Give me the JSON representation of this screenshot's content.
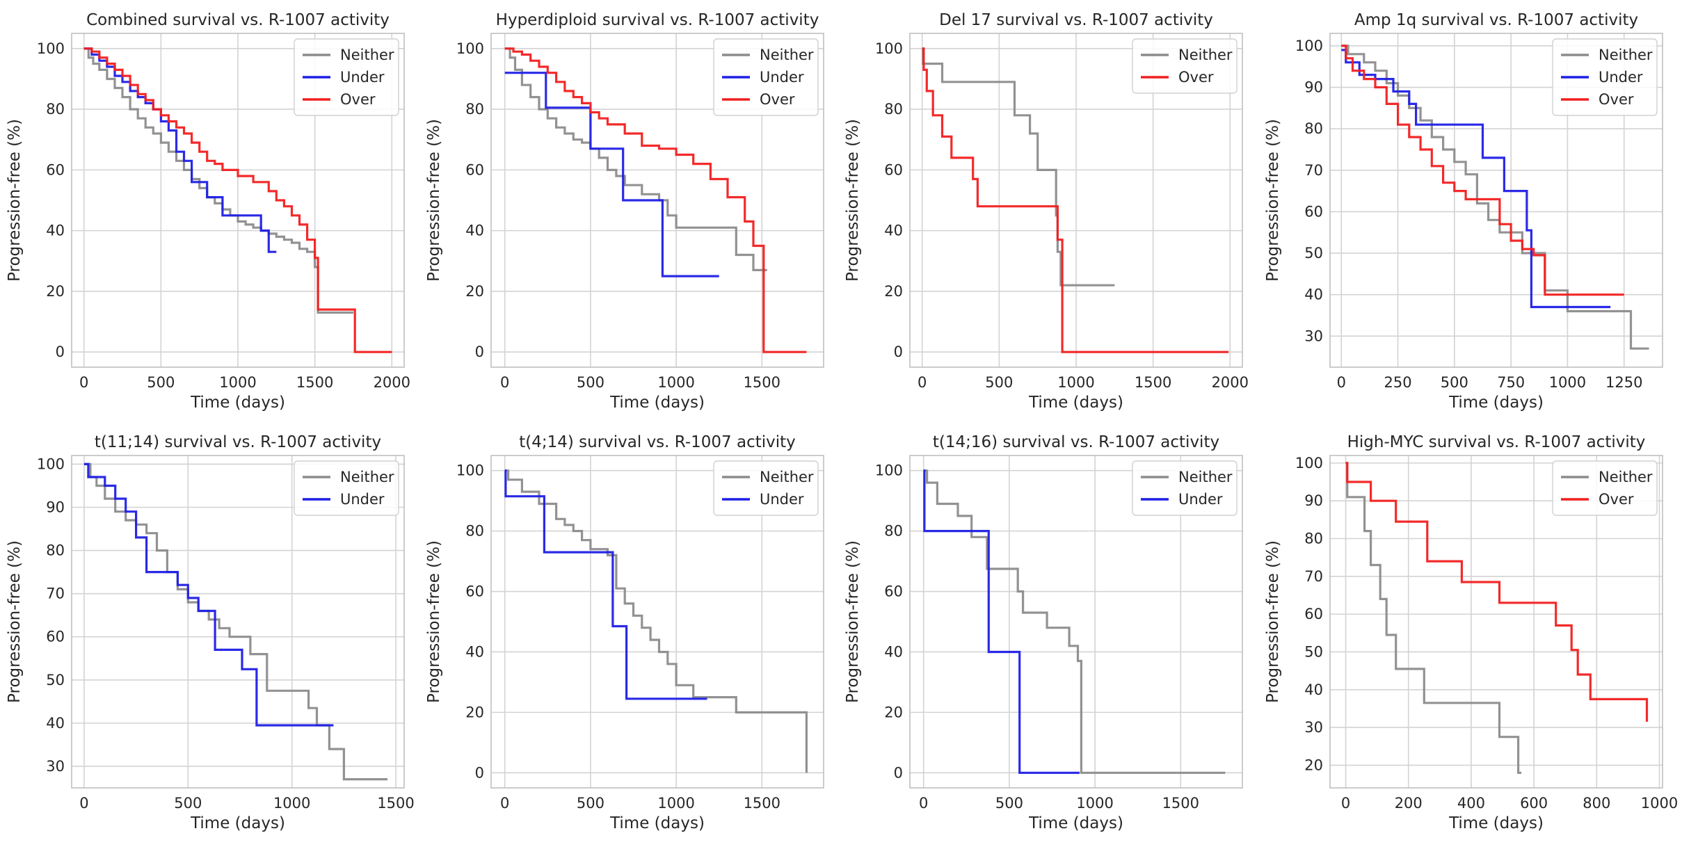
{
  "colors": {
    "Neither": "#8c8c8c",
    "Under": "#1f1fe6",
    "Over": "#f21f1f",
    "grid": "#d3d3d3",
    "axes": "#bfbfbf"
  },
  "chart_data": [
    {
      "type": "line",
      "title": "Combined survival vs. R-1007 activity",
      "xlabel": "Time (days)",
      "ylabel": "Progression-free (%)",
      "xlim": [
        -80,
        2080
      ],
      "ylim": [
        -5,
        105
      ],
      "xticks": [
        0,
        500,
        1000,
        1500,
        2000
      ],
      "yticks": [
        0,
        20,
        40,
        60,
        80,
        100
      ],
      "grid": true,
      "legend": "top-right",
      "legend_entries": [
        "Neither",
        "Under",
        "Over"
      ],
      "series": [
        {
          "name": "Neither",
          "x": [
            0,
            30,
            60,
            100,
            150,
            200,
            250,
            300,
            350,
            400,
            450,
            500,
            550,
            600,
            650,
            700,
            750,
            800,
            850,
            900,
            950,
            1000,
            1050,
            1100,
            1150,
            1200,
            1250,
            1300,
            1350,
            1400,
            1450,
            1500,
            1520,
            1750
          ],
          "y": [
            100,
            97,
            95,
            93,
            90,
            87,
            84,
            80,
            77,
            74,
            72,
            69,
            66,
            63,
            60,
            57,
            54,
            51,
            49,
            47,
            45,
            43,
            42,
            41,
            40,
            39,
            38,
            37,
            36,
            34,
            33,
            28,
            13,
            13
          ]
        },
        {
          "name": "Under",
          "x": [
            0,
            50,
            100,
            150,
            200,
            250,
            300,
            350,
            400,
            450,
            500,
            550,
            600,
            650,
            700,
            800,
            900,
            950,
            1000,
            1150,
            1200,
            1250
          ],
          "y": [
            100,
            98,
            96,
            94,
            91,
            89,
            86,
            84,
            82,
            80,
            76,
            73,
            66,
            63,
            56,
            51,
            45,
            45,
            45,
            40,
            33,
            33
          ]
        },
        {
          "name": "Over",
          "x": [
            0,
            50,
            100,
            150,
            200,
            250,
            300,
            350,
            400,
            450,
            500,
            550,
            600,
            650,
            700,
            750,
            800,
            850,
            900,
            1000,
            1100,
            1200,
            1250,
            1300,
            1350,
            1400,
            1450,
            1500,
            1520,
            1760,
            2000
          ],
          "y": [
            100,
            99,
            97,
            95,
            93,
            91,
            88,
            85,
            83,
            80,
            78,
            76,
            74,
            72,
            69,
            66,
            63,
            62,
            60,
            58,
            56,
            53,
            50,
            48,
            45,
            42,
            37,
            31,
            14,
            0,
            0
          ]
        }
      ]
    },
    {
      "type": "line",
      "title": "Hyperdiploid survival vs. R-1007 activity",
      "xlabel": "Time (days)",
      "ylabel": "Progression-free (%)",
      "xlim": [
        -80,
        1860
      ],
      "ylim": [
        -5,
        105
      ],
      "xticks": [
        0,
        500,
        1000,
        1500
      ],
      "yticks": [
        0,
        20,
        40,
        60,
        80,
        100
      ],
      "grid": true,
      "legend": "top-right",
      "legend_entries": [
        "Neither",
        "Under",
        "Over"
      ],
      "series": [
        {
          "name": "Neither",
          "x": [
            0,
            30,
            60,
            100,
            150,
            200,
            250,
            300,
            350,
            400,
            450,
            500,
            550,
            600,
            650,
            700,
            800,
            900,
            950,
            1000,
            1100,
            1350,
            1450,
            1530
          ],
          "y": [
            100,
            97,
            93,
            88,
            84,
            80,
            77,
            74,
            72,
            70,
            69,
            67,
            64,
            60,
            58,
            55,
            52,
            50,
            45,
            41,
            41,
            32,
            27,
            27
          ]
        },
        {
          "name": "Under",
          "x": [
            0,
            240,
            500,
            690,
            920,
            1250
          ],
          "y": [
            92,
            80.5,
            67,
            50,
            25,
            25
          ]
        },
        {
          "name": "Over",
          "x": [
            0,
            50,
            100,
            150,
            200,
            250,
            300,
            350,
            400,
            450,
            500,
            550,
            600,
            700,
            800,
            900,
            1000,
            1100,
            1200,
            1300,
            1400,
            1450,
            1510,
            1760
          ],
          "y": [
            100,
            99,
            98,
            96,
            94,
            92,
            89,
            86,
            84,
            82,
            79,
            77,
            75,
            72,
            68,
            67,
            65,
            62,
            57,
            51,
            43,
            35,
            0,
            0
          ]
        }
      ]
    },
    {
      "type": "line",
      "title": "Del 17 survival vs. R-1007 activity",
      "xlabel": "Time (days)",
      "ylabel": "Progression-free (%)",
      "xlim": [
        -80,
        2080
      ],
      "ylim": [
        -5,
        105
      ],
      "xticks": [
        0,
        500,
        1000,
        1500,
        2000
      ],
      "yticks": [
        0,
        20,
        40,
        60,
        80,
        100
      ],
      "grid": true,
      "legend": "top-right",
      "legend_entries": [
        "Neither",
        "Over"
      ],
      "series": [
        {
          "name": "Neither",
          "x": [
            0,
            5,
            130,
            530,
            600,
            700,
            750,
            870,
            880,
            900,
            1250
          ],
          "y": [
            100,
            95,
            89,
            89,
            78,
            72,
            60,
            45,
            33,
            22,
            22
          ]
        },
        {
          "name": "Over",
          "x": [
            0,
            10,
            30,
            70,
            130,
            190,
            330,
            360,
            880,
            910,
            1990
          ],
          "y": [
            100,
            93,
            86,
            78,
            71,
            64,
            57,
            48,
            37,
            0,
            0
          ]
        }
      ]
    },
    {
      "type": "line",
      "title": "Amp 1q survival vs. R-1007 activity",
      "xlabel": "Time (days)",
      "ylabel": "Progression-free (%)",
      "xlim": [
        -50,
        1420
      ],
      "ylim": [
        22.5,
        103
      ],
      "xticks": [
        0,
        250,
        500,
        750,
        1000,
        1250
      ],
      "yticks": [
        30,
        40,
        50,
        60,
        70,
        80,
        90,
        100
      ],
      "grid": true,
      "legend": "top-right",
      "legend_entries": [
        "Neither",
        "Under",
        "Over"
      ],
      "series": [
        {
          "name": "Neither",
          "x": [
            0,
            30,
            100,
            150,
            200,
            250,
            300,
            350,
            400,
            450,
            500,
            550,
            600,
            650,
            700,
            800,
            900,
            1000,
            1100,
            1250,
            1280,
            1360
          ],
          "y": [
            100,
            98,
            96,
            94,
            91,
            88,
            85,
            82,
            78,
            75,
            72,
            69,
            62,
            58,
            55,
            50,
            41,
            36,
            36,
            36,
            27,
            27
          ]
        },
        {
          "name": "Under",
          "x": [
            0,
            20,
            80,
            150,
            230,
            300,
            330,
            620,
            625,
            720,
            820,
            840,
            1190
          ],
          "y": [
            99,
            96,
            93,
            92,
            89,
            86,
            81,
            81,
            73,
            65,
            55.5,
            37,
            37
          ]
        },
        {
          "name": "Over",
          "x": [
            0,
            20,
            50,
            100,
            150,
            200,
            250,
            300,
            350,
            400,
            450,
            500,
            550,
            600,
            650,
            700,
            750,
            800,
            850,
            900,
            1250
          ],
          "y": [
            100,
            97,
            94,
            92,
            90,
            86,
            81,
            78,
            75,
            71,
            67,
            65,
            63,
            63,
            63,
            57,
            53,
            51,
            49.5,
            40,
            40
          ]
        }
      ]
    },
    {
      "type": "line",
      "title": "t(11;14) survival vs. R-1007 activity",
      "xlabel": "Time (days)",
      "ylabel": "Progression-free (%)",
      "xlim": [
        -60,
        1540
      ],
      "ylim": [
        25,
        102
      ],
      "xticks": [
        0,
        500,
        1000,
        1500
      ],
      "yticks": [
        30,
        40,
        50,
        60,
        70,
        80,
        90,
        100
      ],
      "grid": true,
      "legend": "top-right",
      "legend_entries": [
        "Neither",
        "Under"
      ],
      "series": [
        {
          "name": "Neither",
          "x": [
            0,
            30,
            60,
            100,
            150,
            200,
            250,
            300,
            350,
            400,
            450,
            500,
            550,
            600,
            650,
            700,
            800,
            880,
            1080,
            1120,
            1180,
            1250,
            1460
          ],
          "y": [
            100,
            97,
            95,
            92,
            89,
            87,
            86,
            84,
            80,
            75,
            71,
            68,
            66,
            64,
            62,
            60,
            56,
            47.5,
            43.5,
            39.5,
            34,
            27,
            27
          ]
        },
        {
          "name": "Under",
          "x": [
            0,
            20,
            100,
            150,
            200,
            250,
            300,
            380,
            450,
            500,
            550,
            630,
            760,
            830,
            1200
          ],
          "y": [
            100,
            97,
            95,
            92,
            89,
            83,
            75,
            75,
            72,
            69,
            66,
            57,
            52.5,
            39.5,
            39.5
          ]
        }
      ]
    },
    {
      "type": "line",
      "title": "t(4;14) survival vs. R-1007 activity",
      "xlabel": "Time (days)",
      "ylabel": "Progression-free (%)",
      "xlim": [
        -80,
        1860
      ],
      "ylim": [
        -5,
        105
      ],
      "xticks": [
        0,
        500,
        1000,
        1500
      ],
      "yticks": [
        0,
        20,
        40,
        60,
        80,
        100
      ],
      "grid": true,
      "legend": "top-right",
      "legend_entries": [
        "Neither",
        "Under"
      ],
      "series": [
        {
          "name": "Neither",
          "x": [
            0,
            20,
            100,
            200,
            300,
            350,
            400,
            450,
            500,
            600,
            650,
            700,
            750,
            800,
            850,
            900,
            950,
            1000,
            1100,
            1350,
            1760
          ],
          "y": [
            100,
            97,
            93,
            89,
            84,
            82,
            80,
            77,
            74,
            72,
            61,
            56,
            52,
            48,
            44,
            40,
            36,
            29,
            25,
            20,
            0
          ]
        },
        {
          "name": "Under",
          "x": [
            0,
            5,
            230,
            600,
            630,
            710,
            1180
          ],
          "y": [
            100,
            91.5,
            73,
            73,
            48.5,
            24.5,
            24.5
          ]
        }
      ]
    },
    {
      "type": "line",
      "title": "t(14;16) survival vs. R-1007 activity",
      "xlabel": "Time (days)",
      "ylabel": "Progression-free (%)",
      "xlim": [
        -80,
        1860
      ],
      "ylim": [
        -5,
        105
      ],
      "xticks": [
        0,
        500,
        1000,
        1500
      ],
      "yticks": [
        0,
        20,
        40,
        60,
        80,
        100
      ],
      "grid": true,
      "legend": "top-right",
      "legend_entries": [
        "Neither",
        "Under"
      ],
      "series": [
        {
          "name": "Neither",
          "x": [
            0,
            20,
            80,
            200,
            280,
            370,
            400,
            550,
            580,
            720,
            850,
            900,
            920,
            1760
          ],
          "y": [
            100,
            96,
            89,
            85,
            78,
            67.5,
            67.5,
            60,
            53,
            48,
            42,
            37,
            0,
            0
          ]
        },
        {
          "name": "Under",
          "x": [
            0,
            5,
            370,
            380,
            560,
            910
          ],
          "y": [
            100,
            80,
            80,
            40,
            0,
            0
          ]
        }
      ]
    },
    {
      "type": "line",
      "title": "High-MYC survival vs. R-1007 activity",
      "xlabel": "Time (days)",
      "ylabel": "Progression-free (%)",
      "xlim": [
        -50,
        1010
      ],
      "ylim": [
        14,
        102
      ],
      "xticks": [
        0,
        200,
        400,
        600,
        800,
        1000
      ],
      "yticks": [
        20,
        30,
        40,
        50,
        60,
        70,
        80,
        90,
        100
      ],
      "grid": true,
      "legend": "top-right",
      "legend_entries": [
        "Neither",
        "Over"
      ],
      "series": [
        {
          "name": "Neither",
          "x": [
            0,
            5,
            60,
            80,
            110,
            130,
            160,
            250,
            490,
            550,
            560
          ],
          "y": [
            100,
            91,
            82,
            73,
            64,
            54.5,
            45.5,
            36.5,
            27.5,
            18,
            18
          ]
        },
        {
          "name": "Over",
          "x": [
            0,
            5,
            80,
            160,
            260,
            370,
            490,
            670,
            720,
            740,
            780,
            960
          ],
          "y": [
            100,
            95,
            90,
            84.5,
            74,
            68.5,
            63,
            57,
            50.5,
            44,
            37.5,
            31.5
          ]
        }
      ]
    }
  ]
}
